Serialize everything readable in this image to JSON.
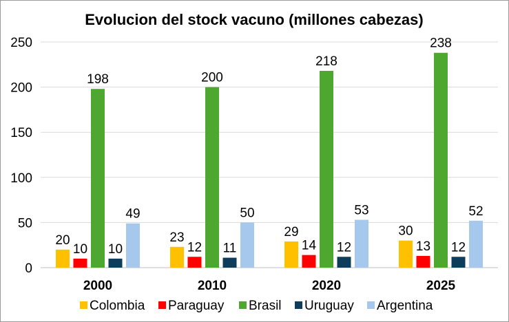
{
  "chart_data": {
    "type": "bar",
    "title": "Evolucion del stock vacuno (millones cabezas)",
    "categories": [
      "2000",
      "2010",
      "2020",
      "2025"
    ],
    "series": [
      {
        "name": "Colombia",
        "color": "#ffc000",
        "values": [
          20,
          23,
          29,
          30
        ]
      },
      {
        "name": "Paraguay",
        "color": "#ff0000",
        "values": [
          10,
          12,
          14,
          13
        ]
      },
      {
        "name": "Brasil",
        "color": "#4ea72e",
        "values": [
          198,
          200,
          218,
          238
        ]
      },
      {
        "name": "Uruguay",
        "color": "#0e3d5c",
        "values": [
          10,
          11,
          12,
          12
        ]
      },
      {
        "name": "Argentina",
        "color": "#a6c8ec",
        "values": [
          49,
          50,
          53,
          52
        ]
      }
    ],
    "ylim": [
      0,
      250
    ],
    "yticks": [
      "0",
      "50",
      "100",
      "150",
      "200",
      "250"
    ],
    "xlabel": "",
    "ylabel": "",
    "grid": true,
    "legend": "bottom"
  }
}
